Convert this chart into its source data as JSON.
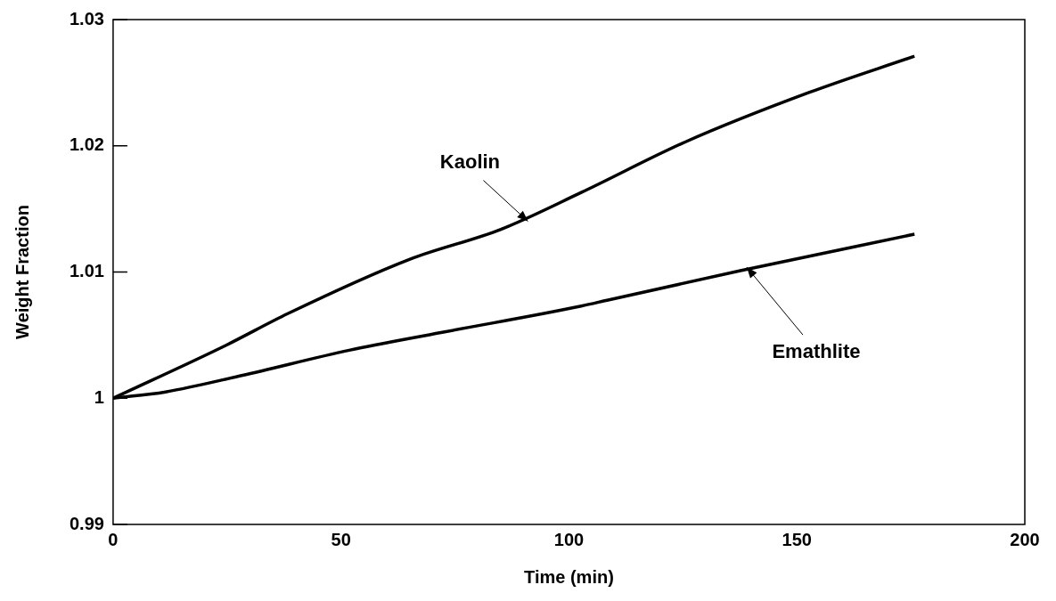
{
  "chart_data": {
    "type": "line",
    "xlabel": "Time (min)",
    "ylabel": "Weight Fraction",
    "xlim": [
      0,
      200
    ],
    "xticks": [
      0,
      50,
      100,
      150,
      200
    ],
    "ylim": [
      0.99,
      1.03
    ],
    "yticks": [
      0.99,
      1,
      1.01,
      1.02,
      1.03
    ],
    "grid": false,
    "legend": false,
    "marker": "none",
    "line_style": "solid",
    "series": [
      {
        "color": "#000000",
        "x": [
          0,
          24.8,
          38.3,
          65,
          85.2,
          102.7,
          125.5,
          152.5,
          175.8
        ],
        "values": [
          1.0,
          1.0042,
          1.0067,
          1.011,
          1.0134,
          1.0163,
          1.0203,
          1.0242,
          1.0271
        ]
      },
      {
        "color": "#000000",
        "x": [
          0,
          11.5,
          28.2,
          51.8,
          71.9,
          102.7,
          108.8,
          137.6,
          175.8
        ],
        "values": [
          1.0,
          1.0005,
          1.0018,
          1.0038,
          1.0052,
          1.0073,
          1.0078,
          1.0101,
          1.013
        ]
      }
    ],
    "annotations": [
      {
        "text": "Kaolin",
        "x": 91,
        "y": 1.0143
      },
      {
        "text": "Emathlite",
        "x": 139,
        "y": 1.0101
      }
    ]
  }
}
